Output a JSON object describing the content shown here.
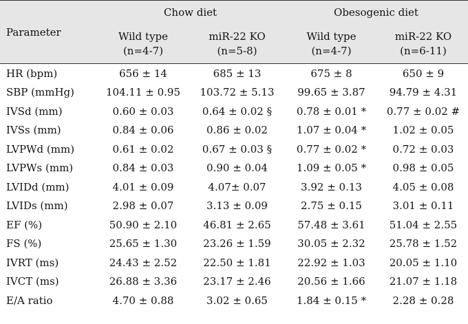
{
  "header": {
    "parameter": "Parameter",
    "chow_diet": "Chow diet",
    "obesogenic_diet": "Obesogenic diet",
    "columns": [
      {
        "name": "Wild type",
        "n": "(n=4-7)"
      },
      {
        "name": "miR-22 KO",
        "n": "(n=5-8)"
      },
      {
        "name": "Wild type",
        "n": "(n=4-7)"
      },
      {
        "name": "miR-22 KO",
        "n": "(n=6-11)"
      }
    ]
  },
  "rows": [
    {
      "parameter": "HR (bpm)",
      "values": [
        "656 ± 14",
        "685 ± 13",
        "675 ± 8",
        "650 ± 9"
      ]
    },
    {
      "parameter": "SBP (mmHg)",
      "values": [
        "104.11 ± 0.95",
        "103.72 ± 5.13",
        "99.65 ± 3.87",
        "94.79 ± 4.31"
      ]
    },
    {
      "parameter": "IVSd (mm)",
      "values": [
        "0.60 ± 0.03",
        "0.64 ± 0.02 §",
        "0.78 ± 0.01 *",
        "0.77 ± 0.02 #"
      ]
    },
    {
      "parameter": "IVSs (mm)",
      "values": [
        "0.84 ± 0.06",
        "0.86 ± 0.02",
        "1.07 ± 0.04 *",
        "1.02 ± 0.05"
      ]
    },
    {
      "parameter": "LVPWd (mm)",
      "values": [
        "0.61 ± 0.02",
        "0.67 ± 0.03 §",
        "0.77 ± 0.02 *",
        "0.72 ± 0.03"
      ]
    },
    {
      "parameter": "LVPWs (mm)",
      "values": [
        "0.84 ± 0.03",
        "0.90 ± 0.04",
        "1.09 ± 0.05 *",
        "0.98 ± 0.05"
      ]
    },
    {
      "parameter": "LVIDd (mm)",
      "values": [
        "4.01 ± 0.09",
        "4.07± 0.07",
        "3.92 ± 0.13",
        "4.05 ± 0.08"
      ]
    },
    {
      "parameter": "LVIDs (mm)",
      "values": [
        "2.98 ± 0.07",
        "3.13 ± 0.09",
        "2.75 ± 0.15",
        "3.01 ± 0.11"
      ]
    },
    {
      "parameter": "EF (%)",
      "values": [
        "50.90 ± 2.10",
        "46.81 ± 2.65",
        "57.48 ± 3.61",
        "51.04 ± 2.55"
      ]
    },
    {
      "parameter": "FS (%)",
      "values": [
        "25.65 ± 1.30",
        "23.26 ± 1.59",
        "30.05 ± 2.32",
        "25.78 ± 1.52"
      ]
    },
    {
      "parameter": "IVRT (ms)",
      "values": [
        "24.43 ± 2.52",
        "22.50 ± 1.81",
        "22.92 ± 1.03",
        "20.05 ± 1.10"
      ]
    },
    {
      "parameter": "IVCT (ms)",
      "values": [
        "26.88 ± 3.36",
        "23.17 ± 2.46",
        "20.56 ± 1.66",
        "21.07 ± 1.18"
      ]
    },
    {
      "parameter": "E/A ratio",
      "values": [
        "4.70 ± 0.88",
        "3.02 ± 0.65",
        "1.84 ± 0.15 *",
        "2.28 ± 0.28"
      ]
    }
  ]
}
